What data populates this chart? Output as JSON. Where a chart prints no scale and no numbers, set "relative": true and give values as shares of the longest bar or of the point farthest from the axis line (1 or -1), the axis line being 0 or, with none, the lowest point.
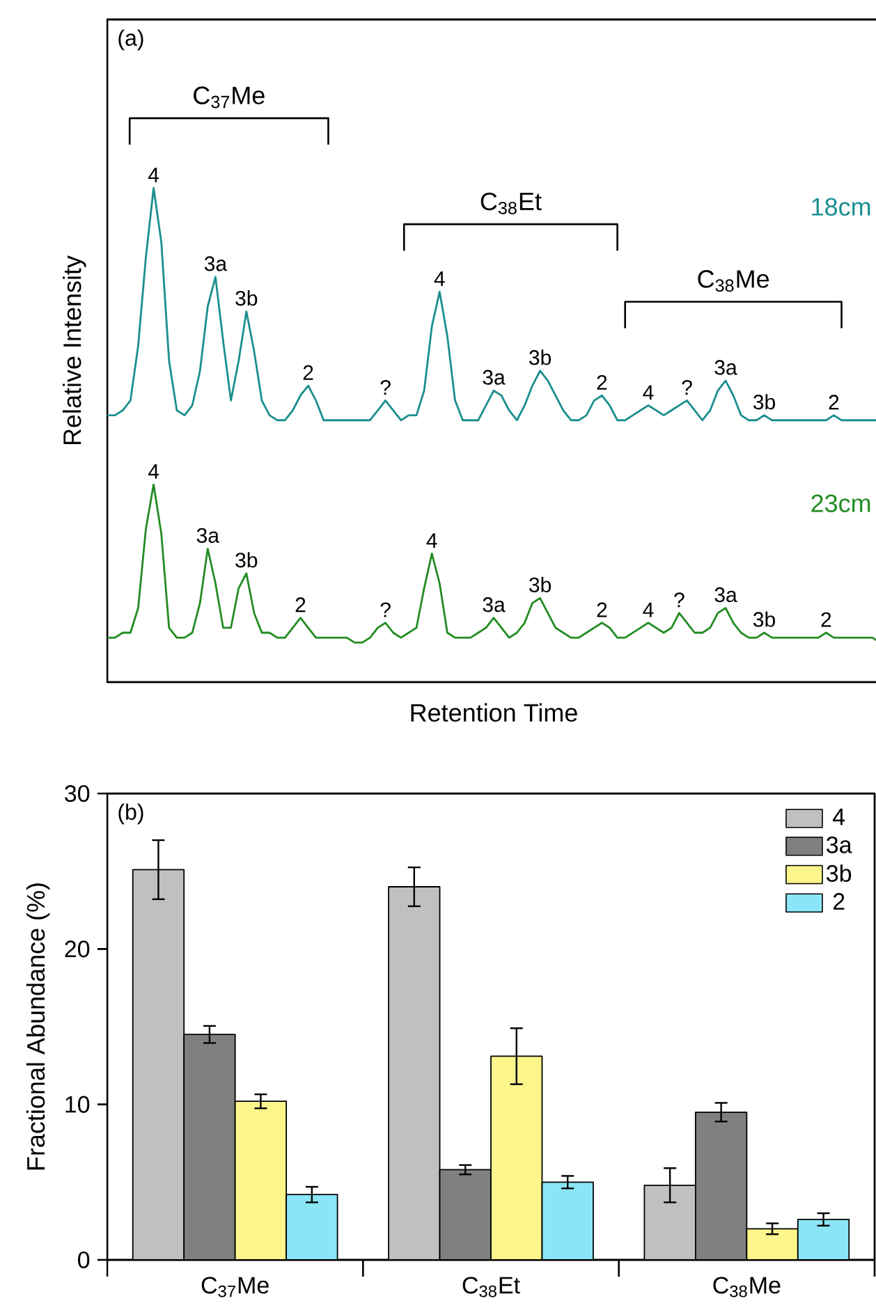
{
  "chart_data": [
    {
      "type": "line",
      "relative": true,
      "tick_labels": false,
      "xlabel": "Retention Time",
      "ylabel": "Relative Intensity",
      "categories": [
        null,
        null,
        null,
        null,
        null,
        null,
        null,
        null,
        null,
        null,
        null,
        null,
        null,
        null,
        null,
        null,
        null,
        null,
        null,
        null,
        null,
        null,
        null,
        null,
        null,
        null,
        null,
        null,
        null,
        null,
        null,
        null,
        null,
        null,
        null,
        null,
        null,
        null,
        null,
        null,
        null,
        null,
        null,
        null,
        null,
        null,
        null,
        null,
        null,
        null,
        null,
        null,
        null,
        null,
        null,
        null,
        null,
        null,
        null,
        null,
        null,
        null,
        null,
        null,
        null,
        null,
        null,
        null,
        null,
        null,
        null,
        null,
        null,
        null,
        null,
        null,
        null,
        null,
        null,
        null,
        null,
        null,
        null,
        null,
        null,
        null,
        null,
        null,
        null,
        null,
        null,
        null,
        null,
        null,
        null,
        null,
        null,
        null,
        null,
        null,
        null
      ],
      "series": [
        {
          "name": "18cm",
          "color": "#1b8e8e",
          "values": [
            0.54,
            0.54,
            0.55,
            0.57,
            0.68,
            0.86,
            1.0,
            0.89,
            0.65,
            0.55,
            0.54,
            0.56,
            0.63,
            0.76,
            0.82,
            0.69,
            0.57,
            0.65,
            0.75,
            0.67,
            0.57,
            0.54,
            0.53,
            0.53,
            0.55,
            0.58,
            0.6,
            0.57,
            0.53,
            0.53,
            0.53,
            0.53,
            0.53,
            0.53,
            0.53,
            0.55,
            0.57,
            0.55,
            0.53,
            0.54,
            0.54,
            0.59,
            0.72,
            0.79,
            0.7,
            0.57,
            0.53,
            0.53,
            0.53,
            0.56,
            0.59,
            0.58,
            0.55,
            0.53,
            0.56,
            0.6,
            0.63,
            0.61,
            0.58,
            0.55,
            0.53,
            0.53,
            0.54,
            0.57,
            0.58,
            0.56,
            0.53,
            0.53,
            0.54,
            0.55,
            0.56,
            0.55,
            0.54,
            0.55,
            0.56,
            0.57,
            0.55,
            0.53,
            0.55,
            0.59,
            0.61,
            0.58,
            0.54,
            0.53,
            0.53,
            0.54,
            0.53,
            0.53,
            0.53,
            0.53,
            0.53,
            0.53,
            0.53,
            0.53,
            0.54,
            0.53,
            0.53,
            0.53,
            0.53,
            0.53,
            0.53
          ]
        },
        {
          "name": "23cm",
          "color": "#218c21",
          "values": [
            0.09,
            0.09,
            0.1,
            0.1,
            0.15,
            0.31,
            0.4,
            0.3,
            0.11,
            0.09,
            0.09,
            0.1,
            0.16,
            0.27,
            0.2,
            0.11,
            0.11,
            0.19,
            0.22,
            0.14,
            0.1,
            0.1,
            0.09,
            0.09,
            0.11,
            0.13,
            0.11,
            0.09,
            0.09,
            0.09,
            0.09,
            0.09,
            0.08,
            0.08,
            0.09,
            0.11,
            0.12,
            0.1,
            0.09,
            0.1,
            0.11,
            0.19,
            0.26,
            0.2,
            0.1,
            0.09,
            0.09,
            0.09,
            0.1,
            0.11,
            0.13,
            0.11,
            0.09,
            0.1,
            0.12,
            0.16,
            0.17,
            0.14,
            0.11,
            0.1,
            0.09,
            0.09,
            0.1,
            0.11,
            0.12,
            0.11,
            0.09,
            0.09,
            0.1,
            0.11,
            0.12,
            0.11,
            0.1,
            0.11,
            0.14,
            0.12,
            0.1,
            0.1,
            0.11,
            0.14,
            0.15,
            0.12,
            0.1,
            0.09,
            0.09,
            0.1,
            0.09,
            0.09,
            0.09,
            0.09,
            0.09,
            0.09,
            0.09,
            0.1,
            0.09,
            0.09,
            0.09,
            0.09,
            0.09,
            0.09,
            0.08
          ]
        }
      ],
      "annotations": [
        "(a)",
        "C$_{37}$Me",
        "C$_{38}$Et",
        "C$_{38}$Me",
        {
          "text": "4",
          "y": 1.0
        },
        {
          "text": "3a",
          "y": 0.82
        },
        {
          "text": "3b",
          "y": 0.75
        },
        {
          "text": "2",
          "y": 0.6
        },
        {
          "text": "?",
          "y": 0.57
        },
        {
          "text": "4",
          "y": 0.79
        },
        {
          "text": "3a",
          "y": 0.59
        },
        {
          "text": "3b",
          "y": 0.63
        },
        {
          "text": "2",
          "y": 0.58
        },
        {
          "text": "4",
          "y": 0.56
        },
        {
          "text": "?",
          "y": 0.57
        },
        {
          "text": "3a",
          "y": 0.61
        },
        {
          "text": "3b",
          "y": 0.54
        },
        {
          "text": "2",
          "y": 0.54
        },
        {
          "text": "4",
          "y": 0.4
        },
        {
          "text": "3a",
          "y": 0.27
        },
        {
          "text": "3b",
          "y": 0.22
        },
        {
          "text": "2",
          "y": 0.13
        },
        {
          "text": "?",
          "y": 0.12
        },
        {
          "text": "4",
          "y": 0.26
        },
        {
          "text": "3a",
          "y": 0.13
        },
        {
          "text": "3b",
          "y": 0.17
        },
        {
          "text": "2",
          "y": 0.12
        },
        {
          "text": "4",
          "y": 0.12
        },
        {
          "text": "?",
          "y": 0.14
        },
        {
          "text": "3a",
          "y": 0.15
        },
        {
          "text": "3b",
          "y": 0.1
        },
        {
          "text": "2",
          "y": 0.1
        }
      ]
    },
    {
      "type": "bar",
      "ylabel": "Fractional Abundance (%)",
      "categories": [
        "C$_{37}$Me",
        "C$_{38}$Et",
        "C$_{38}$Me"
      ],
      "ylim": [
        0,
        30
      ],
      "yticks": [
        0,
        10,
        20,
        30
      ],
      "legend": "top right",
      "annotations": [
        "(b)"
      ],
      "series": [
        {
          "name": "4",
          "color": "#c0c0c0",
          "values": [
            25.1,
            24.0,
            4.8
          ],
          "errors": [
            1.9,
            1.25,
            1.1
          ]
        },
        {
          "name": "3a",
          "color": "#808080",
          "values": [
            14.5,
            5.8,
            9.5
          ],
          "errors": [
            0.55,
            0.3,
            0.6
          ]
        },
        {
          "name": "3b",
          "color": "#fbf58c",
          "values": [
            10.2,
            13.1,
            2.0
          ],
          "errors": [
            0.45,
            1.8,
            0.35
          ]
        },
        {
          "name": "2",
          "color": "#8ae6f6",
          "values": [
            4.2,
            5.0,
            2.6
          ],
          "errors": [
            0.5,
            0.4,
            0.4
          ]
        }
      ]
    }
  ]
}
